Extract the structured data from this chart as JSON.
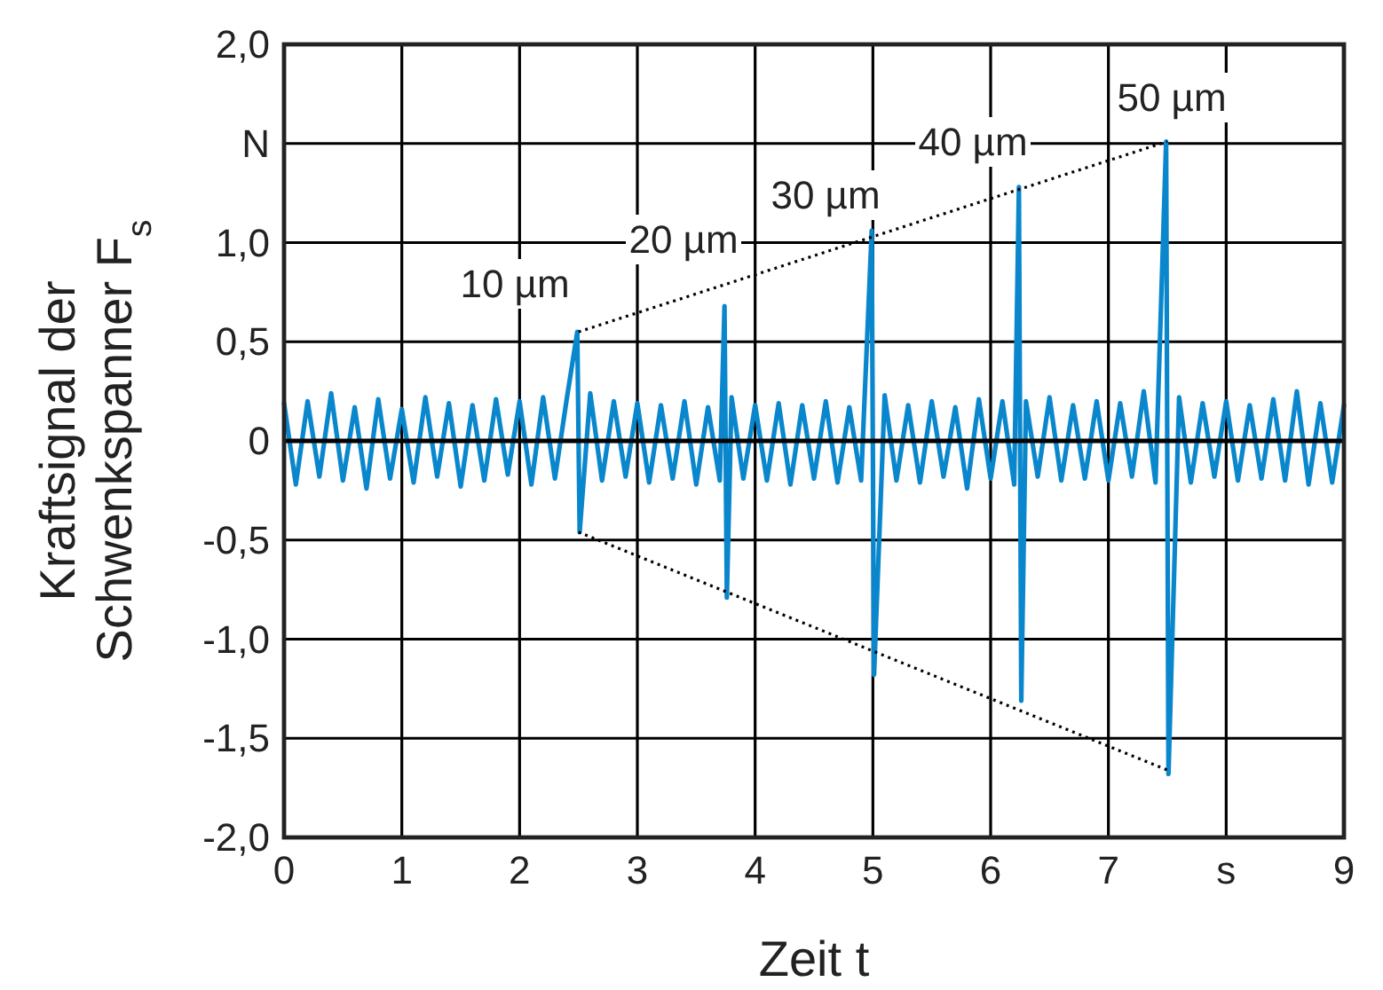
{
  "chart_data": {
    "type": "line",
    "xlabel": "Zeit t",
    "ylabel": "Kraftsignal der\nSchwenkspanner F$_{s}$",
    "xlim": [
      0,
      9
    ],
    "xticks": [
      0,
      1,
      2,
      3,
      4,
      5,
      6,
      7,
      {
        "value": 8,
        "label": "s"
      },
      9
    ],
    "ylim": [
      -2,
      2
    ],
    "yticks": [
      {
        "value": -2,
        "label": "-2,0"
      },
      {
        "value": -1.5,
        "label": "-1,5"
      },
      {
        "value": -1,
        "label": "-1,0"
      },
      {
        "value": -0.5,
        "label": "-0,5"
      },
      0,
      {
        "value": 0.5,
        "label": "0,5"
      },
      {
        "value": 1,
        "label": "1,0"
      },
      {
        "value": 1.5,
        "label": "N"
      },
      {
        "value": 2,
        "label": "2,0"
      }
    ],
    "grid": true,
    "ref_lines": [
      {
        "axis": "y",
        "value": 0,
        "color": "#000000"
      }
    ],
    "series": [
      {
        "color": "#0a87cc",
        "line_style": "solid",
        "x": [
          0,
          0.1,
          0.2,
          0.3,
          0.4,
          0.5,
          0.6,
          0.7,
          0.8,
          0.9,
          1,
          1.1,
          1.2,
          1.3,
          1.4,
          1.5,
          1.6,
          1.7,
          1.8,
          1.9,
          2,
          2.1,
          2.2,
          2.3,
          2.4,
          2.49,
          2.51,
          2.6,
          2.7,
          2.8,
          2.9,
          3,
          3.1,
          3.2,
          3.3,
          3.4,
          3.5,
          3.6,
          3.7,
          3.74,
          3.76,
          3.8,
          3.9,
          4,
          4.1,
          4.2,
          4.3,
          4.4,
          4.5,
          4.6,
          4.7,
          4.8,
          4.9,
          4.99,
          5.01,
          5.1,
          5.2,
          5.3,
          5.4,
          5.5,
          5.6,
          5.7,
          5.8,
          5.9,
          6,
          6.1,
          6.2,
          6.24,
          6.26,
          6.3,
          6.4,
          6.5,
          6.6,
          6.7,
          6.8,
          6.9,
          7,
          7.1,
          7.2,
          7.3,
          7.4,
          7.49,
          7.51,
          7.6,
          7.7,
          7.8,
          7.9,
          8,
          8.1,
          8.2,
          8.3,
          8.4,
          8.5,
          8.6,
          8.7,
          8.8,
          8.9,
          9
        ],
        "values": [
          0.19,
          -0.22,
          0.2,
          -0.18,
          0.24,
          -0.2,
          0.17,
          -0.24,
          0.21,
          -0.19,
          0.16,
          -0.21,
          0.22,
          -0.18,
          0.19,
          -0.23,
          0.18,
          -0.2,
          0.21,
          -0.17,
          0.2,
          -0.22,
          0.22,
          -0.19,
          0.21,
          0.55,
          -0.46,
          0.24,
          -0.2,
          0.2,
          -0.18,
          0.19,
          -0.21,
          0.18,
          -0.19,
          0.2,
          -0.22,
          0.17,
          -0.2,
          0.68,
          -0.79,
          0.22,
          -0.19,
          0.18,
          -0.2,
          0.19,
          -0.22,
          0.18,
          -0.19,
          0.2,
          -0.21,
          0.17,
          -0.2,
          1.06,
          -1.18,
          0.23,
          -0.2,
          0.18,
          -0.21,
          0.2,
          -0.18,
          0.17,
          -0.24,
          0.21,
          -0.19,
          0.2,
          -0.22,
          1.28,
          -1.31,
          0.2,
          -0.18,
          0.22,
          -0.2,
          0.18,
          -0.19,
          0.2,
          -0.2,
          0.19,
          -0.18,
          0.25,
          -0.21,
          1.51,
          -1.68,
          0.22,
          -0.21,
          0.19,
          -0.18,
          0.2,
          -0.2,
          0.18,
          -0.19,
          0.21,
          -0.2,
          0.25,
          -0.22,
          0.19,
          -0.21,
          0.18
        ]
      },
      {
        "type": "line",
        "color": "#000000",
        "line_style": "dotted",
        "x": [
          2.5,
          7.5
        ],
        "values": [
          0.55,
          1.51
        ]
      },
      {
        "type": "line",
        "color": "#000000",
        "line_style": "dotted",
        "x": [
          2.5,
          7.5
        ],
        "values": [
          -0.46,
          -1.66
        ]
      }
    ],
    "annotations": [
      "10 µm",
      "20 µm",
      "30 µm",
      "40 µm",
      "50 µm"
    ]
  }
}
